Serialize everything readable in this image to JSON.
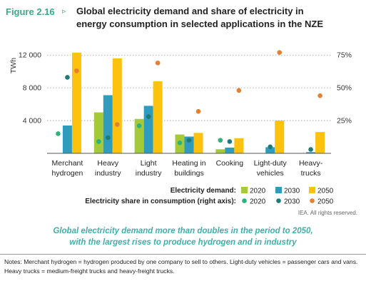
{
  "figure": {
    "label": "Figure 2.16",
    "arrow": "▹",
    "title_line1": "Global electricity demand and share of electricity in",
    "title_line2": "energy consumption in selected applications in the NZE"
  },
  "chart_data": {
    "type": "bar",
    "categories": [
      [
        "Merchant",
        "hydrogen"
      ],
      [
        "Heavy",
        "industry"
      ],
      [
        "Light",
        "industry"
      ],
      [
        "Heating in",
        "buildings"
      ],
      [
        "Cooking"
      ],
      [
        "Light-duty",
        "vehicles"
      ],
      [
        "Heavy-",
        "trucks"
      ]
    ],
    "ylabel": "TWh",
    "ylim": [
      0,
      13500
    ],
    "yticks": [
      4000,
      8000,
      12000
    ],
    "ytick_labels": [
      "4 000",
      "8 000",
      "12 000"
    ],
    "y2lim": [
      0,
      0.84375
    ],
    "y2ticks": [
      0.25,
      0.5,
      0.75
    ],
    "y2tick_labels": [
      "25%",
      "50%",
      "75%"
    ],
    "grid": "dotted horizontal",
    "series": [
      {
        "name": "2020",
        "color": "#a4c93a",
        "values": [
          0,
          5000,
          4200,
          2300,
          500,
          10,
          10
        ]
      },
      {
        "name": "2030",
        "color": "#2f9bbd",
        "values": [
          3400,
          7100,
          5800,
          2050,
          700,
          750,
          150
        ]
      },
      {
        "name": "2050",
        "color": "#fdc20e",
        "values": [
          12300,
          11600,
          8800,
          2500,
          1850,
          4000,
          2600
        ]
      }
    ],
    "share_series": [
      {
        "name": "2020",
        "color": "#2db37a",
        "values": [
          0.15,
          0.09,
          0.21,
          0.08,
          0.1,
          0.0,
          0.0
        ]
      },
      {
        "name": "2030",
        "color": "#1f7a7a",
        "values": [
          0.58,
          0.12,
          0.28,
          0.1,
          0.09,
          0.05,
          0.03
        ]
      },
      {
        "name": "2050",
        "color": "#e57f32",
        "values": [
          0.63,
          0.22,
          0.69,
          0.32,
          0.48,
          0.77,
          0.44
        ]
      }
    ],
    "legend": {
      "bars_label": "Electricity demand:",
      "dots_label": "Electricity share in consumption (right axis):",
      "years": [
        "2020",
        "2030",
        "2050"
      ],
      "placement": "bottom-right"
    }
  },
  "credit": "IEA. All rights reserved.",
  "caption_line1": "Global electricity demand more than doubles in the period to 2050,",
  "caption_line2": "with the largest rises to produce hydrogen and in industry",
  "notes_text": "Notes: Merchant hydrogen = hydrogen produced by one company to sell to others. Light-duty vehicles = passenger cars and vans. Heavy trucks = medium-freight trucks and heavy-freight trucks."
}
